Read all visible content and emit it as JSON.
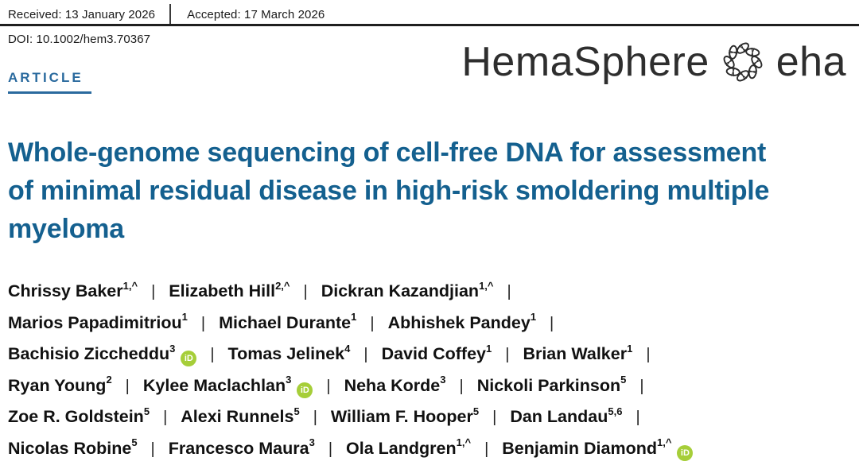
{
  "meta": {
    "received": "Received: 13 January 2026",
    "accepted": "Accepted: 17 March 2026",
    "doi": "DOI: 10.1002/hem3.70367",
    "article_type": "ARTICLE"
  },
  "journal": {
    "name": "HemaSphere",
    "publisher": "eha"
  },
  "title": {
    "full": "Whole-genome sequencing of cell-free DNA for assessment of minimal residual disease in high-risk smoldering multiple myeloma",
    "lines": [
      "Whole-genome sequencing of cell-free DNA for assessment",
      "of minimal residual disease in high-risk smoldering multiple",
      "myeloma"
    ]
  },
  "authors": {
    "separator": "|",
    "list": [
      {
        "name": "Chrissy Baker",
        "sup": "1,^",
        "orcid": false
      },
      {
        "name": "Elizabeth Hill",
        "sup": "2,^",
        "orcid": false
      },
      {
        "name": "Dickran Kazandjian",
        "sup": "1,^",
        "orcid": false
      },
      {
        "name": "Marios Papadimitriou",
        "sup": "1",
        "orcid": false
      },
      {
        "name": "Michael Durante",
        "sup": "1",
        "orcid": false
      },
      {
        "name": "Abhishek Pandey",
        "sup": "1",
        "orcid": false
      },
      {
        "name": "Bachisio Ziccheddu",
        "sup": "3",
        "orcid": true
      },
      {
        "name": "Tomas Jelinek",
        "sup": "4",
        "orcid": false
      },
      {
        "name": "David Coffey",
        "sup": "1",
        "orcid": false
      },
      {
        "name": "Brian Walker",
        "sup": "1",
        "orcid": false
      },
      {
        "name": "Ryan Young",
        "sup": "2",
        "orcid": false
      },
      {
        "name": "Kylee Maclachlan",
        "sup": "3",
        "orcid": true
      },
      {
        "name": "Neha Korde",
        "sup": "3",
        "orcid": false
      },
      {
        "name": "Nickoli Parkinson",
        "sup": "5",
        "orcid": false
      },
      {
        "name": "Zoe R. Goldstein",
        "sup": "5",
        "orcid": false
      },
      {
        "name": "Alexi Runnels",
        "sup": "5",
        "orcid": false
      },
      {
        "name": "William F. Hooper",
        "sup": "5",
        "orcid": false
      },
      {
        "name": "Dan Landau",
        "sup": "5,6",
        "orcid": false
      },
      {
        "name": "Nicolas Robine",
        "sup": "5",
        "orcid": false
      },
      {
        "name": "Francesco Maura",
        "sup": "3",
        "orcid": false
      },
      {
        "name": "Ola Landgren",
        "sup": "1,^",
        "orcid": false
      },
      {
        "name": "Benjamin Diamond",
        "sup": "1,^",
        "orcid": true
      }
    ],
    "rows": [
      {
        "items": [
          0,
          1,
          2
        ],
        "trailing_separator": true
      },
      {
        "items": [
          3,
          4,
          5
        ],
        "trailing_separator": true
      },
      {
        "items": [
          6,
          7,
          8,
          9
        ],
        "trailing_separator": true
      },
      {
        "items": [
          10,
          11,
          12,
          13
        ],
        "trailing_separator": true
      },
      {
        "items": [
          14,
          15,
          16,
          17
        ],
        "trailing_separator": true
      },
      {
        "items": [
          18,
          19,
          20,
          21
        ],
        "trailing_separator": false
      }
    ]
  },
  "icons": {
    "orcid_glyph": "iD",
    "eha_wreath": "eha-wreath-icon"
  },
  "colors": {
    "article_blue": "#2a6a9e",
    "title_blue": "#14608f",
    "orcid_green": "#a6ce39",
    "logo_dark": "#2e2e2e"
  }
}
